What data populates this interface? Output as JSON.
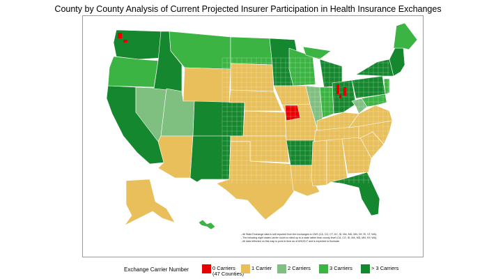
{
  "title": "County by County Analysis of Current Projected Insurer Participation in Health Insurance Exchanges",
  "colors": {
    "c0": "#e60000",
    "c1": "#e8bf5a",
    "c2": "#7fbf7f",
    "c3": "#3cb443",
    "c4": "#15872e",
    "border": "#ffffff"
  },
  "legend": {
    "title": "Exchange Carrier Number",
    "items": [
      {
        "label": "0 Carriers",
        "sublabel": "(47 Counties)",
        "color_key": "c0"
      },
      {
        "label": "1 Carrier",
        "sublabel": "",
        "color_key": "c1"
      },
      {
        "label": "2 Carriers",
        "sublabel": "",
        "color_key": "c2"
      },
      {
        "label": "3 Carriers",
        "sublabel": "",
        "color_key": "c3"
      },
      {
        "label": "> 3 Carriers",
        "sublabel": "",
        "color_key": "c4"
      }
    ]
  },
  "notes": [
    "- All State Exchange data is self-reported from the exchanges to CMS (CA, CO, CT, DC, ID, MA, MD, MN, NY, RI, VT, WA).",
    "- The following eight states carrier count is rolled up to a state rather than county level (CA, CO, ID, MA, MD, MN, NY, WA).",
    "- All data reflected on this map is point in time as of 6/9/2017 and is expected to fluctuate."
  ]
}
